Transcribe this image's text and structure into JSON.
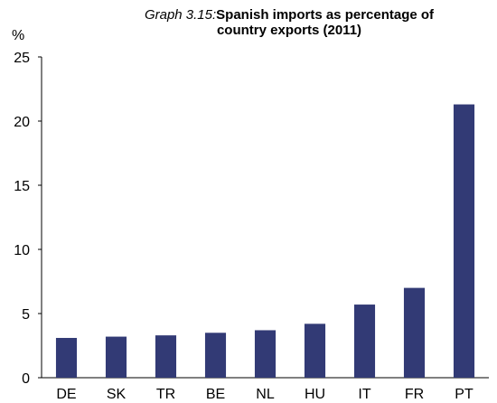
{
  "chart_data": {
    "type": "bar",
    "title_prefix": "Graph 3.15:",
    "title_line1": "Spanish imports as percentage of",
    "title_line2": "country exports (2011)",
    "y_unit": "%",
    "xlabel": "",
    "ylabel": "",
    "ylim": [
      0,
      25
    ],
    "yticks": [
      0,
      5,
      10,
      15,
      20,
      25
    ],
    "categories": [
      "DE",
      "SK",
      "TR",
      "BE",
      "NL",
      "HU",
      "IT",
      "FR",
      "PT"
    ],
    "values": [
      3.1,
      3.2,
      3.3,
      3.5,
      3.7,
      4.2,
      5.7,
      7.0,
      21.3
    ],
    "bar_color": "#323a75",
    "grid": false,
    "legend": "none"
  }
}
